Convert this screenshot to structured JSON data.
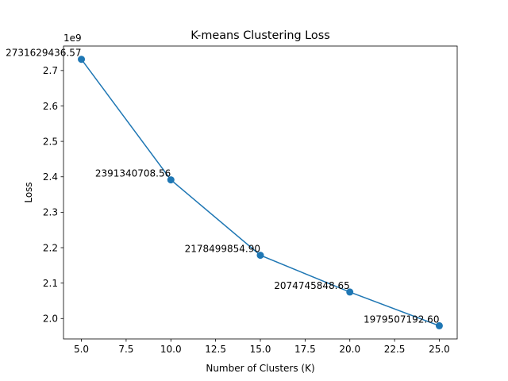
{
  "chart_data": {
    "type": "line",
    "title": "K-means Clustering Loss",
    "xlabel": "Number of Clusters (K)",
    "ylabel": "Loss",
    "y_scale_label": "1e9",
    "xlim": [
      4.0,
      26.0
    ],
    "ylim": [
      1.9424,
      2.7691
    ],
    "x_ticks": [
      5.0,
      7.5,
      10.0,
      12.5,
      15.0,
      17.5,
      20.0,
      22.5,
      25.0
    ],
    "x_tick_labels": [
      "5.0",
      "7.5",
      "10.0",
      "12.5",
      "15.0",
      "17.5",
      "20.0",
      "22.5",
      "25.0"
    ],
    "y_ticks": [
      2.0,
      2.1,
      2.2,
      2.3,
      2.4,
      2.5,
      2.6,
      2.7
    ],
    "y_tick_labels": [
      "2.0",
      "2.1",
      "2.2",
      "2.3",
      "2.4",
      "2.5",
      "2.6",
      "2.7"
    ],
    "grid": false,
    "series": [
      {
        "color": "#1f77b4",
        "x": [
          5,
          10,
          15,
          20,
          25
        ],
        "y": [
          2731629436.57,
          2391340708.56,
          2178499854.9,
          2074745848.65,
          1979507192.6
        ],
        "labels": [
          "2731629436.57",
          "2391340708.56",
          "2178499854.90",
          "2074745848.65",
          "1979507192.60"
        ]
      }
    ]
  }
}
